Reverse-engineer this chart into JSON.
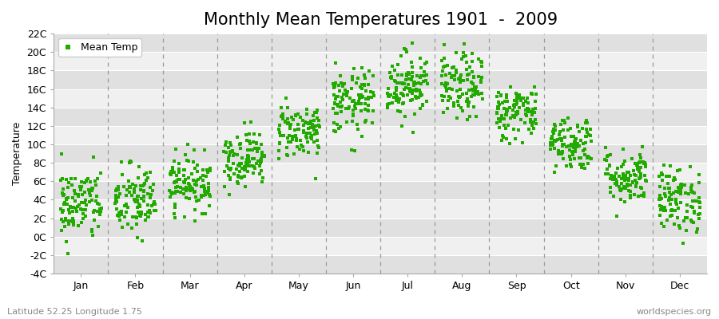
{
  "title": "Monthly Mean Temperatures 1901  -  2009",
  "ylabel": "Temperature",
  "xlabel_labels": [
    "Jan",
    "Feb",
    "Mar",
    "Apr",
    "May",
    "Jun",
    "Jul",
    "Aug",
    "Sep",
    "Oct",
    "Nov",
    "Dec"
  ],
  "ytick_labels": [
    "-4C",
    "-2C",
    "0C",
    "2C",
    "4C",
    "6C",
    "8C",
    "10C",
    "12C",
    "14C",
    "16C",
    "18C",
    "20C",
    "22C"
  ],
  "ytick_values": [
    -4,
    -2,
    0,
    2,
    4,
    6,
    8,
    10,
    12,
    14,
    16,
    18,
    20,
    22
  ],
  "ylim": [
    -4,
    22
  ],
  "dot_color": "#22aa00",
  "dot_size": 6,
  "background_color": "#ffffff",
  "plot_bg_light": "#f0f0f0",
  "plot_bg_dark": "#e0e0e0",
  "grid_line_color": "#ffffff",
  "dashed_line_color": "#999999",
  "legend_label": "Mean Temp",
  "subtitle_left": "Latitude 52.25 Longitude 1.75",
  "subtitle_right": "worldspecies.org",
  "monthly_means": [
    3.5,
    3.8,
    5.8,
    8.5,
    11.5,
    14.5,
    16.5,
    16.2,
    13.5,
    10.2,
    6.5,
    4.0
  ],
  "monthly_stds": [
    2.0,
    2.0,
    1.5,
    1.5,
    1.5,
    1.8,
    1.8,
    1.8,
    1.5,
    1.5,
    1.5,
    1.8
  ],
  "n_years": 109,
  "title_fontsize": 15,
  "axis_fontsize": 9,
  "label_fontsize": 9
}
